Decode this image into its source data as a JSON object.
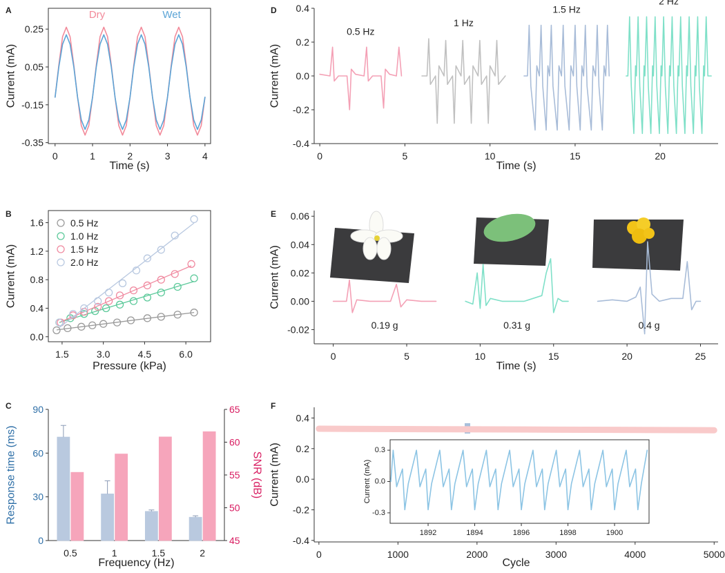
{
  "chart_data": [
    {
      "type": "line",
      "label": "A",
      "x_label": "Time (s)",
      "y_label": "Current (mA)",
      "legend": "top",
      "x": [
        0,
        0.1,
        0.2,
        0.3,
        0.4,
        0.5,
        0.6,
        0.7,
        0.8,
        0.9,
        1,
        1.1,
        1.2,
        1.3,
        1.4,
        1.5,
        1.6,
        1.7,
        1.8,
        1.9,
        2,
        2.1,
        2.2,
        2.3,
        2.4,
        2.5,
        2.6,
        2.7,
        2.8,
        2.9,
        3,
        3.1,
        3.2,
        3.3,
        3.4,
        3.5,
        3.6,
        3.7,
        3.8,
        3.9,
        4
      ],
      "series": [
        {
          "name": "Dry",
          "color": "#f28a9a",
          "values": [
            -0.11,
            0.06,
            0.21,
            0.26,
            0.21,
            0.06,
            -0.11,
            -0.26,
            -0.31,
            -0.26,
            -0.11,
            0.06,
            0.21,
            0.26,
            0.21,
            0.06,
            -0.11,
            -0.26,
            -0.31,
            -0.26,
            -0.11,
            0.06,
            0.21,
            0.26,
            0.21,
            0.06,
            -0.11,
            -0.26,
            -0.31,
            -0.26,
            -0.11,
            0.06,
            0.21,
            0.26,
            0.21,
            0.06,
            -0.11,
            -0.26,
            -0.31,
            -0.26,
            -0.11
          ]
        },
        {
          "name": "Wet",
          "color": "#5ba4d6",
          "values": [
            -0.11,
            0.05,
            0.17,
            0.22,
            0.17,
            0.05,
            -0.11,
            -0.23,
            -0.28,
            -0.23,
            -0.11,
            0.05,
            0.17,
            0.22,
            0.17,
            0.05,
            -0.11,
            -0.23,
            -0.28,
            -0.23,
            -0.11,
            0.05,
            0.17,
            0.22,
            0.17,
            0.05,
            -0.11,
            -0.23,
            -0.28,
            -0.23,
            -0.11,
            0.05,
            0.17,
            0.22,
            0.17,
            0.05,
            -0.11,
            -0.23,
            -0.28,
            -0.23,
            -0.11
          ]
        }
      ],
      "xlim": [
        -0.18,
        4.15
      ],
      "xticks": [
        0,
        1,
        2,
        3,
        4
      ],
      "ylim": [
        -0.355,
        0.36
      ],
      "yticks": [
        -0.35,
        -0.15,
        0.05,
        0.25
      ]
    },
    {
      "type": "scatter",
      "label": "B",
      "x_label": "Pressure (kPa)",
      "y_label": "Current (mA)",
      "legend": "upper left",
      "fit": "linear",
      "series": [
        {
          "name": "0.5 Hz",
          "color": "#9a9a9a",
          "x": [
            1.3,
            1.7,
            2.2,
            2.6,
            3.0,
            3.5,
            4.0,
            4.6,
            5.1,
            5.7,
            6.3
          ],
          "values": [
            0.09,
            0.12,
            0.14,
            0.16,
            0.18,
            0.2,
            0.23,
            0.26,
            0.28,
            0.31,
            0.34
          ]
        },
        {
          "name": "1.0 Hz",
          "color": "#5cc99a",
          "x": [
            1.4,
            1.8,
            2.3,
            2.7,
            3.1,
            3.6,
            4.1,
            4.6,
            5.1,
            5.7,
            6.3
          ],
          "values": [
            0.2,
            0.26,
            0.32,
            0.36,
            0.4,
            0.45,
            0.5,
            0.55,
            0.62,
            0.7,
            0.82
          ]
        },
        {
          "name": "1.5 Hz",
          "color": "#f08aa0",
          "x": [
            1.45,
            1.9,
            2.3,
            2.8,
            3.2,
            3.6,
            4.1,
            4.6,
            5.1,
            5.6,
            6.2
          ],
          "values": [
            0.2,
            0.3,
            0.35,
            0.42,
            0.5,
            0.58,
            0.65,
            0.72,
            0.8,
            0.88,
            1.02
          ]
        },
        {
          "name": "2.0 Hz",
          "color": "#b8c8e0",
          "x": [
            1.4,
            1.9,
            2.3,
            2.8,
            3.2,
            3.7,
            4.2,
            4.6,
            5.1,
            5.6,
            6.3
          ],
          "values": [
            0.2,
            0.32,
            0.4,
            0.5,
            0.62,
            0.75,
            0.93,
            1.1,
            1.22,
            1.42,
            1.65
          ]
        }
      ],
      "xlim": [
        1.0,
        6.9
      ],
      "xticks": [
        1.5,
        {
          "value": 3,
          "label": "3.0"
        },
        4.5,
        {
          "value": 6,
          "label": "6.0"
        }
      ],
      "ylim": [
        -0.07,
        1.77
      ],
      "yticks": [
        {
          "value": 0,
          "label": "0.0"
        },
        0.4,
        0.8,
        1.2,
        1.6
      ]
    },
    {
      "type": "bar",
      "label": "C",
      "x_label": "Frequency (Hz)",
      "y_label": "Response time (ms)",
      "y2_label": "SNR (dB)",
      "axis_colors": {
        "y": "#2e6fa7",
        "y2": "#d81b60"
      },
      "categories": [
        "0.5",
        "1",
        "1.5",
        "2"
      ],
      "series": [
        {
          "name": "Response time",
          "color": "#b9c9df",
          "values": [
            71,
            32,
            20,
            16
          ],
          "errors": [
            8,
            9,
            1,
            1
          ]
        },
        {
          "name": "SNR",
          "color": "#f6a5bb",
          "axis": "y2",
          "values": [
            55.4,
            58.2,
            60.8,
            61.6
          ]
        }
      ],
      "ylim": [
        0,
        90
      ],
      "yticks": [
        0,
        30,
        60,
        90
      ],
      "y2lim": [
        45,
        65
      ],
      "y2ticks": [
        45,
        50,
        55,
        60,
        65
      ]
    },
    {
      "type": "line",
      "label": "D",
      "x_label": "Time (s)",
      "y_label": "Current (mA)",
      "series": [
        {
          "name": "0.5 Hz",
          "color": "#f4a0b5",
          "x": [
            0,
            0.6,
            0.75,
            0.85,
            1.1,
            1.6,
            1.75,
            1.85,
            2.1,
            2.6,
            2.75,
            2.85,
            3.1,
            3.6,
            3.75,
            3.85,
            4.1,
            4.5,
            4.65,
            4.8
          ],
          "values": [
            0.01,
            0.0,
            0.17,
            -0.03,
            0.0,
            0.0,
            -0.2,
            0.04,
            0.01,
            0.0,
            0.17,
            -0.03,
            0.0,
            0.0,
            -0.19,
            0.04,
            0.01,
            0.0,
            0.17,
            0.0
          ]
        },
        {
          "name": "1 Hz",
          "color": "#c0c0c0",
          "x": [
            6.0,
            6.3,
            6.4,
            6.5,
            6.8,
            6.9,
            7.0,
            7.3,
            7.4,
            7.5,
            7.8,
            7.9,
            8.0,
            8.3,
            8.4,
            8.5,
            8.8,
            8.9,
            9.0,
            9.3,
            9.4,
            9.5,
            9.8,
            9.9,
            10.0,
            10.3,
            10.4,
            10.5,
            10.9
          ],
          "values": [
            0.0,
            0.0,
            0.22,
            -0.05,
            0.0,
            -0.28,
            0.06,
            0.0,
            0.21,
            -0.05,
            0.0,
            -0.28,
            0.06,
            0.0,
            0.21,
            -0.05,
            0.0,
            -0.28,
            0.06,
            0.0,
            0.21,
            -0.05,
            0.0,
            -0.28,
            0.06,
            0.0,
            0.21,
            -0.05,
            0.0
          ]
        },
        {
          "name": "1.5 Hz",
          "color": "#a8bcd8",
          "x": [
            12.0,
            12.2,
            12.3,
            12.4,
            12.65,
            12.75,
            12.9,
            13.0,
            13.1,
            13.3,
            13.4,
            13.5,
            13.6,
            13.7,
            13.95,
            14.05,
            14.2,
            14.3,
            14.4,
            14.65,
            14.75,
            14.9,
            15.0,
            15.1,
            15.3,
            15.4,
            15.5,
            15.6,
            15.7,
            15.95,
            16.05,
            16.2,
            16.3,
            16.4,
            16.6,
            16.7,
            16.8,
            16.9,
            17.0
          ],
          "values": [
            0.0,
            0.0,
            0.3,
            -0.06,
            -0.32,
            0.06,
            0.0,
            0.3,
            -0.06,
            -0.32,
            0.06,
            0.0,
            0.3,
            -0.06,
            -0.32,
            0.06,
            0.0,
            0.3,
            -0.06,
            -0.32,
            0.06,
            0.0,
            0.3,
            -0.06,
            -0.32,
            0.06,
            0.0,
            0.3,
            -0.06,
            -0.32,
            0.06,
            0.0,
            0.3,
            -0.06,
            -0.32,
            0.06,
            0.0,
            0.3,
            0.0
          ]
        },
        {
          "name": "2 Hz",
          "color": "#7fe0c8",
          "x": [
            18.0,
            18.1,
            18.2,
            18.3,
            18.45,
            18.55,
            18.6,
            18.7,
            18.8,
            18.95,
            19.05,
            19.1,
            19.2,
            19.3,
            19.45,
            19.55,
            19.6,
            19.7,
            19.8,
            19.95,
            20.05,
            20.1,
            20.2,
            20.3,
            20.45,
            20.55,
            20.6,
            20.7,
            20.8,
            20.95,
            21.05,
            21.1,
            21.2,
            21.3,
            21.45,
            21.55,
            21.6,
            21.7,
            21.8,
            21.95,
            22.05,
            22.1,
            22.2,
            22.3,
            22.45,
            22.55,
            22.6,
            22.7,
            22.8,
            23.0
          ],
          "values": [
            0.0,
            0.0,
            0.35,
            -0.06,
            -0.34,
            0.06,
            0.0,
            0.35,
            -0.06,
            -0.34,
            0.06,
            0.0,
            0.35,
            -0.06,
            -0.34,
            0.06,
            0.0,
            0.35,
            -0.06,
            -0.34,
            0.06,
            0.0,
            0.35,
            -0.06,
            -0.34,
            0.06,
            0.0,
            0.35,
            -0.06,
            -0.34,
            0.06,
            0.0,
            0.35,
            -0.06,
            -0.34,
            0.06,
            0.0,
            0.35,
            -0.06,
            -0.34,
            0.06,
            0.0,
            0.35,
            -0.06,
            -0.34,
            0.06,
            0.0,
            0.35,
            0.0,
            0.0
          ]
        }
      ],
      "xlim": [
        -0.33,
        23.4
      ],
      "xticks": [
        0,
        5,
        10,
        15,
        20
      ],
      "ylim": [
        -0.4,
        0.4
      ],
      "yticks": [
        -0.4,
        -0.2,
        {
          "value": 0,
          "label": "0.0"
        },
        0.2,
        0.4
      ]
    },
    {
      "type": "line",
      "label": "E",
      "x_label": "Time (s)",
      "y_label": "Current (mA)",
      "series": [
        {
          "name": "0.19 g",
          "color": "#f4a0b5",
          "x": [
            0,
            0.9,
            1.1,
            1.3,
            1.6,
            2.5,
            3.9,
            4.3,
            4.6,
            5.0,
            6.0,
            7.0
          ],
          "values": [
            0,
            0,
            0.015,
            -0.008,
            0.001,
            0,
            0,
            0.012,
            -0.004,
            0.001,
            0,
            0
          ]
        },
        {
          "name": "0.31 g",
          "color": "#7fe0c8",
          "x": [
            9,
            9.5,
            9.8,
            10.0,
            10.2,
            10.4,
            10.7,
            11.5,
            13,
            14.2,
            14.5,
            14.8,
            15.0,
            15.3,
            15.6,
            16
          ],
          "values": [
            0,
            -0.002,
            0.02,
            -0.005,
            0.026,
            -0.003,
            0.002,
            0,
            0,
            0.004,
            0.02,
            0.03,
            -0.008,
            0.002,
            0,
            0
          ]
        },
        {
          "name": "0.4 g",
          "color": "#a8bcd8",
          "x": [
            18,
            19,
            20,
            20.6,
            20.9,
            21.2,
            21.4,
            21.7,
            22.2,
            23,
            23.8,
            24.1,
            24.4,
            24.7,
            25
          ],
          "values": [
            0,
            0.001,
            0,
            0.003,
            0.01,
            -0.023,
            0.042,
            0.005,
            0,
            0.002,
            0.002,
            0.028,
            -0.006,
            0,
            0
          ]
        }
      ],
      "xlim": [
        -1.3,
        26.2
      ],
      "xticks": [
        0,
        5,
        10,
        15,
        20,
        25
      ],
      "ylim": [
        -0.03,
        0.064
      ],
      "yticks": [
        -0.02,
        {
          "value": 0,
          "label": "0.00"
        },
        0.02,
        0.04,
        0.06
      ]
    },
    {
      "type": "line",
      "label": "F",
      "x_label": "Cycle",
      "y_label": "Current (mA)",
      "series": [
        {
          "color": "#f9caca",
          "x": [
            0,
            1000,
            2000,
            3000,
            4000,
            5000
          ],
          "values": [
            0.33,
            0.328,
            0.326,
            0.324,
            0.322,
            0.32
          ]
        }
      ],
      "xlim": [
        -60,
        5050
      ],
      "xticks": [
        0,
        1000,
        2000,
        3000,
        4000,
        5000
      ],
      "ylim": [
        -0.41,
        0.47
      ],
      "yticks": [
        -0.4,
        -0.2,
        {
          "value": 0,
          "label": "0.0"
        },
        0.2,
        0.4
      ]
    },
    {
      "type": "line",
      "y_label": "Current (mA)",
      "series": [
        {
          "color": "#8cc4e4",
          "x": [
            1890.4,
            1890.5,
            1890.65,
            1890.9,
            1891,
            1891.15,
            1891.5,
            1891.65,
            1891.9,
            1892,
            1892.15,
            1892.5,
            1892.65,
            1892.9,
            1893,
            1893.15,
            1893.5,
            1893.65,
            1893.9,
            1894,
            1894.15,
            1894.5,
            1894.65,
            1894.9,
            1895,
            1895.15,
            1895.5,
            1895.65,
            1895.9,
            1896,
            1896.15,
            1896.5,
            1896.65,
            1896.9,
            1897,
            1897.15,
            1897.5,
            1897.65,
            1897.9,
            1898,
            1898.15,
            1898.5,
            1898.65,
            1898.9,
            1899,
            1899.15,
            1899.5,
            1899.65,
            1899.9,
            1900,
            1900.15,
            1900.5,
            1900.65,
            1900.9,
            1901,
            1901.15,
            1901.4
          ],
          "values": [
            0.0,
            0.3,
            -0.05,
            0.12,
            -0.27,
            -0.02,
            0.3,
            -0.05,
            0.12,
            -0.27,
            -0.02,
            0.3,
            -0.05,
            0.12,
            -0.27,
            -0.02,
            0.3,
            -0.05,
            0.12,
            -0.27,
            -0.02,
            0.3,
            -0.05,
            0.12,
            -0.27,
            -0.02,
            0.3,
            -0.05,
            0.12,
            -0.27,
            -0.02,
            0.3,
            -0.05,
            0.12,
            -0.27,
            -0.02,
            0.3,
            -0.05,
            0.12,
            -0.27,
            -0.02,
            0.3,
            -0.05,
            0.12,
            -0.27,
            -0.02,
            0.3,
            -0.05,
            0.12,
            -0.27,
            -0.02,
            0.3,
            -0.05,
            0.12,
            -0.27,
            -0.02,
            0.3
          ]
        }
      ],
      "xlim": [
        1890.37,
        1901.48
      ],
      "xticks": [
        1892,
        1894,
        1896,
        1898,
        1900
      ],
      "ylim": [
        -0.4,
        0.4
      ],
      "yticks": [
        -0.3,
        {
          "value": 0,
          "label": "0.0"
        },
        0.3
      ]
    }
  ]
}
